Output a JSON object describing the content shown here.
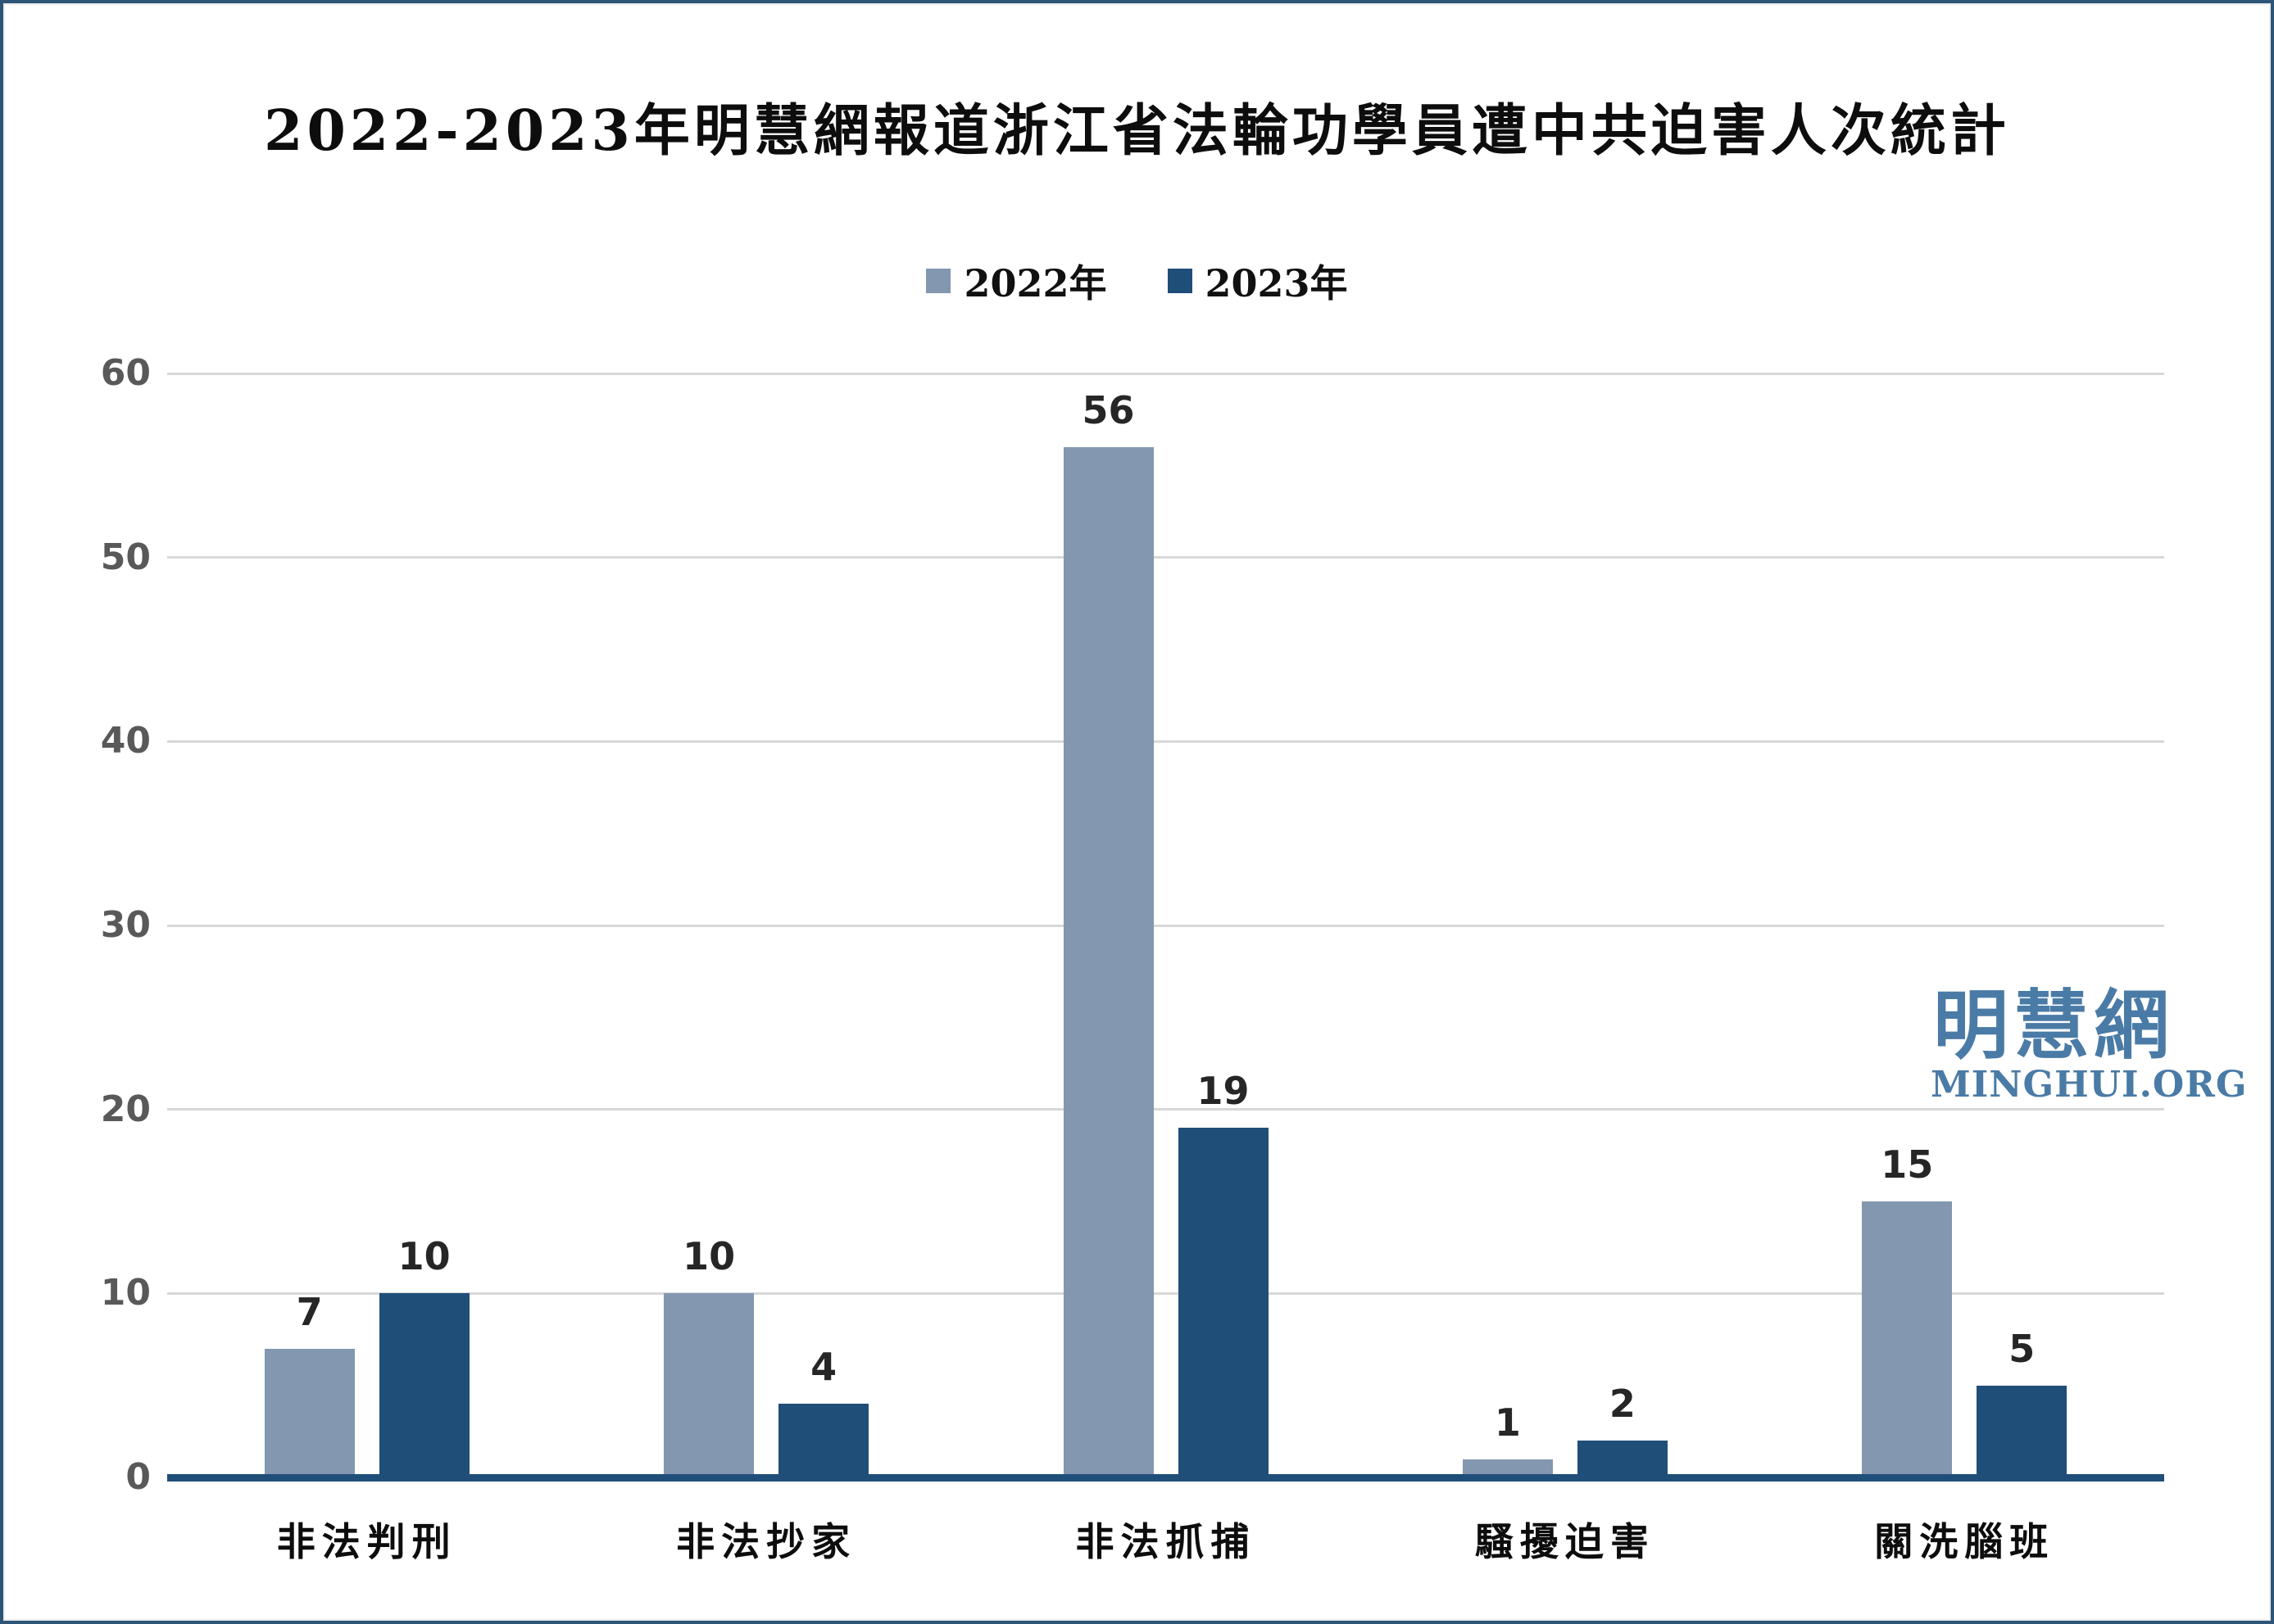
{
  "title": "2022-2023年明慧網報道浙江省法輪功學員遭中共迫害人次統計",
  "watermark": {
    "cn": "明慧網",
    "en": "MINGHUI.ORG"
  },
  "colors": {
    "series_2022": "#8497B0",
    "series_2023": "#1F4E79",
    "axis_line": "#1F4E79",
    "gridline": "#d8d8d8",
    "tick_text": "#595959",
    "watermark": "#4a7ba6",
    "border": "#2d5578"
  },
  "chart_data": {
    "type": "bar",
    "title": "2022-2023年明慧網報道浙江省法輪功學員遭中共迫害人次統計",
    "categories": [
      "非法判刑",
      "非法抄家",
      "非法抓捕",
      "騷擾迫害",
      "關洗腦班"
    ],
    "series": [
      {
        "name": "2022年",
        "color": "#8497B0",
        "values": [
          7,
          10,
          56,
          1,
          15
        ]
      },
      {
        "name": "2023年",
        "color": "#1F4E79",
        "values": [
          10,
          4,
          19,
          2,
          5
        ]
      }
    ],
    "xlabel": "",
    "ylabel": "",
    "ylim": [
      0,
      60
    ],
    "yticks": [
      0,
      10,
      20,
      30,
      40,
      50,
      60
    ],
    "grid": true,
    "legend_position": "top-center",
    "data_labels": true
  }
}
